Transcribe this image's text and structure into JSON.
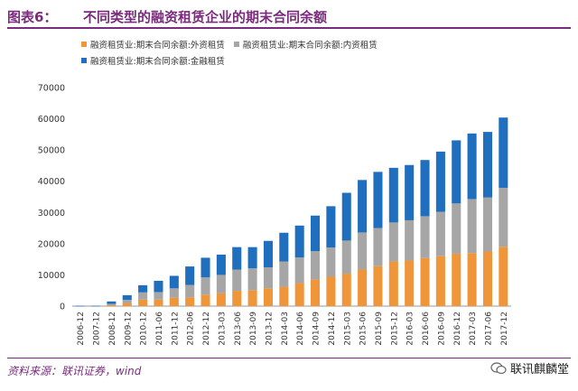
{
  "header": {
    "label": "图表6：",
    "title": "不同类型的融资租赁企业的期末合同余额"
  },
  "source": "资料来源：联讯证券，wind",
  "watermark": "联讯麒麟堂",
  "colors": {
    "accent": "#7b2b7e",
    "series": [
      "#f0963a",
      "#a6a6a6",
      "#1f6fbe"
    ]
  },
  "chart_data": {
    "type": "bar",
    "stacked": true,
    "title": "",
    "xlabel": "",
    "ylabel": "",
    "ylim": [
      0,
      70000
    ],
    "yticks": [
      0,
      10000,
      20000,
      30000,
      40000,
      50000,
      60000,
      70000
    ],
    "ytick_labels": [
      "0",
      "10000",
      "20000",
      "30000",
      "40000",
      "50000",
      "60000",
      "70000"
    ],
    "categories": [
      "2006-12",
      "2007-12",
      "2008-12",
      "2009-12",
      "2010-12",
      "2011-06",
      "2011-12",
      "2012-06",
      "2012-12",
      "2013-03",
      "2013-06",
      "2013-09",
      "2013-12",
      "2014-03",
      "2014-06",
      "2014-09",
      "2014-12",
      "2015-03",
      "2015-06",
      "2015-09",
      "2015-12",
      "2016-03",
      "2016-06",
      "2016-09",
      "2016-12",
      "2017-03",
      "2017-06",
      "2017-12"
    ],
    "series": [
      {
        "name": "融资租赁业:期末合同余额:外资租赁",
        "values": [
          0,
          0,
          300,
          1000,
          2100,
          2100,
          2700,
          2800,
          3700,
          4100,
          4900,
          5100,
          5700,
          6200,
          7400,
          8500,
          9400,
          10400,
          11700,
          12800,
          14300,
          14600,
          15400,
          16000,
          16800,
          17000,
          17500,
          19000
        ]
      },
      {
        "name": "融资租赁业:期末合同余额:内资租赁",
        "values": [
          0,
          0,
          400,
          1000,
          2300,
          2400,
          3000,
          4000,
          5500,
          5900,
          6800,
          7000,
          6700,
          8100,
          8200,
          9100,
          9400,
          10600,
          11900,
          12200,
          12500,
          12900,
          13400,
          14200,
          16100,
          17300,
          17300,
          18900
        ]
      },
      {
        "name": "融资租赁业:期末合同余额:金融租赁",
        "values": [
          100,
          100,
          800,
          1500,
          2300,
          3600,
          4000,
          5900,
          6300,
          6500,
          7200,
          6800,
          8500,
          9200,
          10200,
          11400,
          13200,
          15300,
          16800,
          18000,
          17500,
          17700,
          18000,
          19300,
          20200,
          21000,
          21000,
          22500
        ]
      }
    ]
  }
}
